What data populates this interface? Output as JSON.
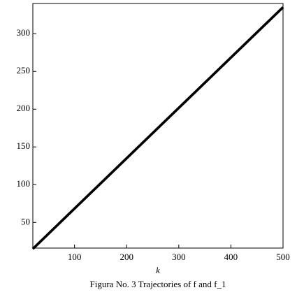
{
  "chart_data": {
    "type": "line",
    "caption": "Figura No. 3 Trajectories of f and f_1",
    "xlabel": "k",
    "x": [
      20,
      500
    ],
    "series": [
      {
        "color": "#000000",
        "values": [
          15,
          335
        ]
      },
      {
        "color": "#000000",
        "values": [
          15,
          335
        ]
      }
    ],
    "xlim": [
      20,
      500
    ],
    "xticks": [
      100,
      200,
      300,
      400,
      500
    ],
    "ylim": [
      16,
      340
    ],
    "yticks": [
      50,
      100,
      150,
      200,
      250,
      300
    ]
  }
}
